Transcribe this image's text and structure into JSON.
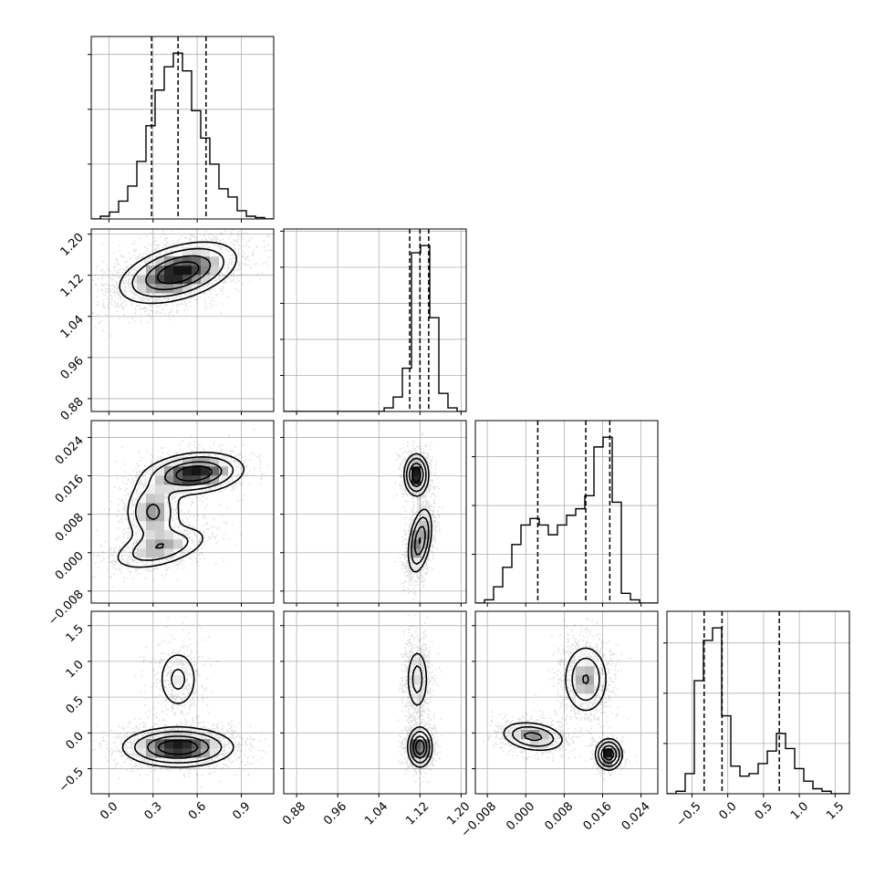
{
  "chart_data": {
    "type": "corner",
    "parameters": [
      {
        "name": "p0",
        "range": [
          -0.12,
          1.12
        ],
        "ticks": [
          0.0,
          0.3,
          0.6,
          0.9
        ],
        "tick_labels": [
          "0.0",
          "0.3",
          "0.6",
          "0.9"
        ],
        "quantiles": [
          0.29,
          0.47,
          0.66
        ]
      },
      {
        "name": "p1",
        "range": [
          0.855,
          1.21
        ],
        "ticks": [
          0.88,
          0.96,
          1.04,
          1.12,
          1.2
        ],
        "tick_labels": [
          "0.88",
          "0.96",
          "1.04",
          "1.12",
          "1.20"
        ],
        "quantiles": [
          1.1,
          1.12,
          1.137
        ]
      },
      {
        "name": "p2",
        "range": [
          -0.0105,
          0.0275
        ],
        "ticks": [
          -0.008,
          0.0,
          0.008,
          0.016,
          0.024
        ],
        "tick_labels": [
          "−0.008",
          "0.000",
          "0.008",
          "0.016",
          "0.024"
        ],
        "quantiles": [
          0.0025,
          0.0125,
          0.0175
        ]
      },
      {
        "name": "p3",
        "range": [
          -0.85,
          1.7
        ],
        "ticks": [
          -0.5,
          0.0,
          0.5,
          1.0,
          1.5
        ],
        "tick_labels": [
          "−0.5",
          "0.0",
          "0.5",
          "1.0",
          "1.5"
        ],
        "quantiles": [
          -0.33,
          -0.08,
          0.72
        ]
      }
    ],
    "histograms": [
      {
        "param": 0,
        "edges": [
          -0.12,
          -0.058,
          0.004,
          0.066,
          0.128,
          0.19,
          0.252,
          0.314,
          0.376,
          0.438,
          0.5,
          0.562,
          0.624,
          0.686,
          0.748,
          0.81,
          0.872,
          0.934,
          0.996,
          1.058,
          1.12
        ],
        "counts": [
          0,
          2,
          5,
          13,
          24,
          42,
          68,
          94,
          111,
          121,
          108,
          79,
          59,
          40,
          22,
          16,
          6,
          2,
          1,
          0
        ]
      },
      {
        "param": 1,
        "edges": [
          0.855,
          0.8728,
          0.8905,
          0.9083,
          0.926,
          0.9438,
          0.9615,
          0.9793,
          0.997,
          1.0148,
          1.0325,
          1.0503,
          1.068,
          1.0858,
          1.1035,
          1.1213,
          1.139,
          1.1568,
          1.1745,
          1.1923,
          1.21
        ],
        "counts": [
          0,
          0,
          0,
          0,
          0,
          0,
          0,
          0,
          0,
          0,
          0,
          1,
          4,
          12,
          44,
          46,
          26,
          5,
          1,
          0
        ]
      },
      {
        "param": 2,
        "edges": [
          -0.0105,
          -0.0086,
          -0.0067,
          -0.0048,
          -0.0029,
          -0.001,
          0.0009,
          0.0028,
          0.0047,
          0.0066,
          0.0085,
          0.0104,
          0.0123,
          0.0142,
          0.0161,
          0.018,
          0.0199,
          0.0218,
          0.0237,
          0.0256,
          0.0275
        ],
        "counts": [
          0,
          1,
          5,
          11,
          18,
          24,
          26,
          24,
          21,
          24,
          27,
          29,
          33,
          48,
          51,
          31,
          3,
          1,
          0,
          0
        ]
      },
      {
        "param": 3,
        "edges": [
          -0.85,
          -0.7225,
          -0.595,
          -0.4675,
          -0.34,
          -0.2125,
          -0.085,
          0.0425,
          0.17,
          0.2975,
          0.425,
          0.5525,
          0.68,
          0.8075,
          0.935,
          1.0625,
          1.19,
          1.3175,
          1.445,
          1.5725,
          1.7
        ],
        "counts": [
          0,
          1,
          8,
          45,
          61,
          66,
          31,
          11,
          7,
          8,
          12,
          17,
          24,
          18,
          10,
          5,
          2,
          1,
          0,
          0
        ]
      }
    ],
    "density_modes": {
      "p0_p1": [
        {
          "x": 0.47,
          "y": 1.125,
          "sx": 0.2,
          "sy": 0.03,
          "rho": 0.45,
          "w": 1.0
        }
      ],
      "p0_p2": [
        {
          "x": 0.58,
          "y": 0.0165,
          "sx": 0.17,
          "sy": 0.0022,
          "rho": 0.2,
          "w": 0.5
        },
        {
          "x": 0.3,
          "y": 0.0085,
          "sx": 0.1,
          "sy": 0.0035,
          "rho": 0.0,
          "w": 0.3
        },
        {
          "x": 0.35,
          "y": 0.001,
          "sx": 0.18,
          "sy": 0.0025,
          "rho": 0.5,
          "w": 0.25
        }
      ],
      "p0_p3": [
        {
          "x": 0.47,
          "y": 0.75,
          "sx": 0.08,
          "sy": 0.25,
          "rho": 0.0,
          "w": 0.35
        },
        {
          "x": 0.47,
          "y": -0.2,
          "sx": 0.19,
          "sy": 0.14,
          "rho": 0.0,
          "w": 1.0
        }
      ],
      "p1_p2": [
        {
          "x": 1.113,
          "y": 0.0162,
          "sx": 0.012,
          "sy": 0.0022,
          "rho": 0.0,
          "w": 0.7
        },
        {
          "x": 1.12,
          "y": 0.0025,
          "sx": 0.012,
          "sy": 0.0035,
          "rho": 0.4,
          "w": 0.55
        }
      ],
      "p1_p3": [
        {
          "x": 1.115,
          "y": 0.75,
          "sx": 0.012,
          "sy": 0.25,
          "rho": 0.0,
          "w": 0.4
        },
        {
          "x": 1.12,
          "y": -0.2,
          "sx": 0.012,
          "sy": 0.14,
          "rho": 0.0,
          "w": 1.0
        }
      ],
      "p2_p3": [
        {
          "x": 0.0015,
          "y": -0.05,
          "sx": 0.0035,
          "sy": 0.11,
          "rho": -0.25,
          "w": 0.5
        },
        {
          "x": 0.0125,
          "y": 0.75,
          "sx": 0.0025,
          "sy": 0.26,
          "rho": 0.0,
          "w": 0.45
        },
        {
          "x": 0.0173,
          "y": -0.3,
          "sx": 0.0014,
          "sy": 0.11,
          "rho": 0.0,
          "w": 0.8
        }
      ]
    },
    "grid": true,
    "colors": {
      "points": "#000000",
      "lines": "#000000",
      "grid": "#b0b0b0",
      "axes": "#000000"
    }
  }
}
